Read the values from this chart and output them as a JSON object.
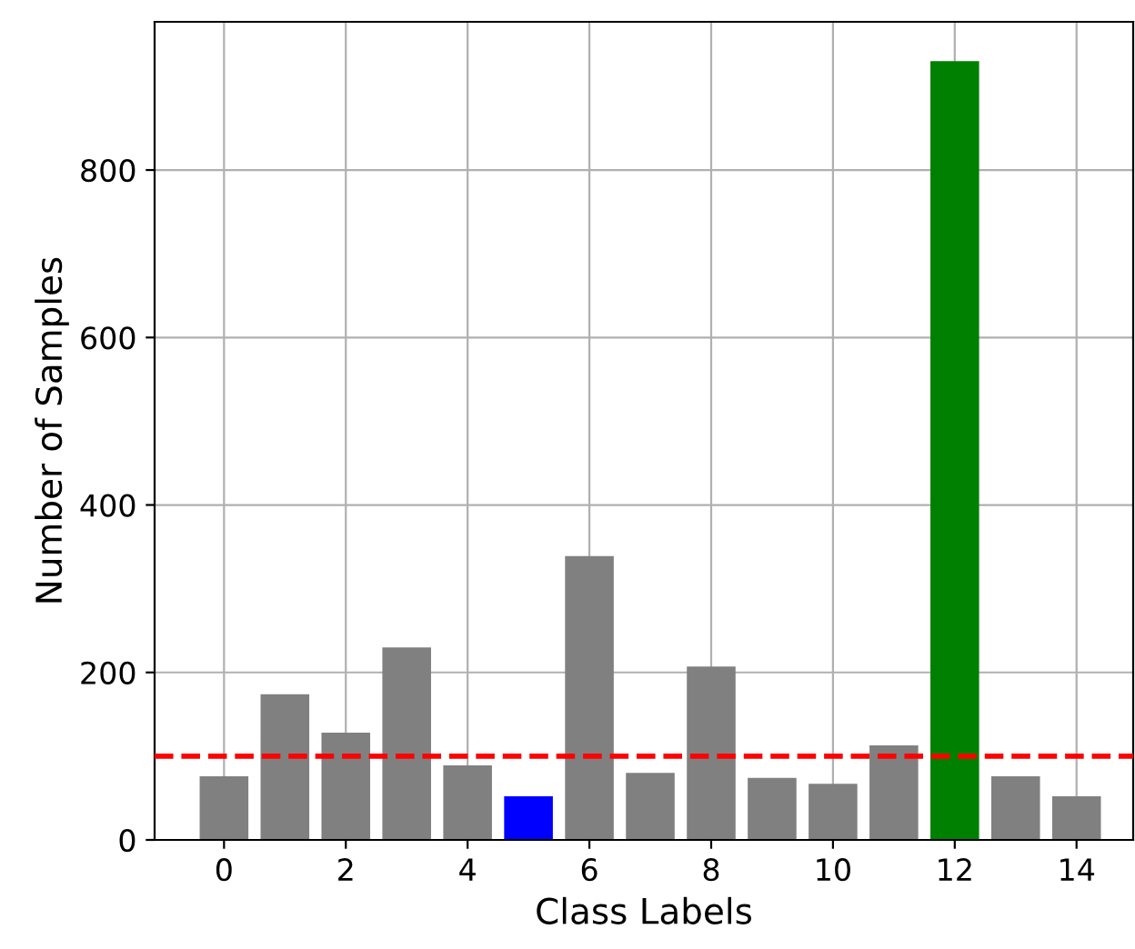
{
  "chart_data": {
    "type": "bar",
    "xlabel": "Class Labels",
    "ylabel": "Number of Samples",
    "x": [
      0,
      1,
      2,
      3,
      4,
      5,
      6,
      7,
      8,
      9,
      10,
      11,
      12,
      13,
      14
    ],
    "values": [
      76,
      174,
      128,
      230,
      89,
      52,
      339,
      80,
      207,
      74,
      67,
      113,
      930,
      76,
      52
    ],
    "colors": [
      "#808080",
      "#808080",
      "#808080",
      "#808080",
      "#808080",
      "#0000ff",
      "#808080",
      "#808080",
      "#808080",
      "#808080",
      "#808080",
      "#808080",
      "#008000",
      "#808080",
      "#808080"
    ],
    "xlim": [
      -1.14,
      14.93
    ],
    "xticks": [
      0,
      2,
      4,
      6,
      8,
      10,
      12,
      14
    ],
    "ylim": [
      0,
      977
    ],
    "yticks": [
      0,
      200,
      400,
      600,
      800
    ],
    "grid": true,
    "ref_lines": [
      {
        "axis": "y",
        "value": 100,
        "color": "#ff0000",
        "line_style": "dashed"
      }
    ]
  }
}
